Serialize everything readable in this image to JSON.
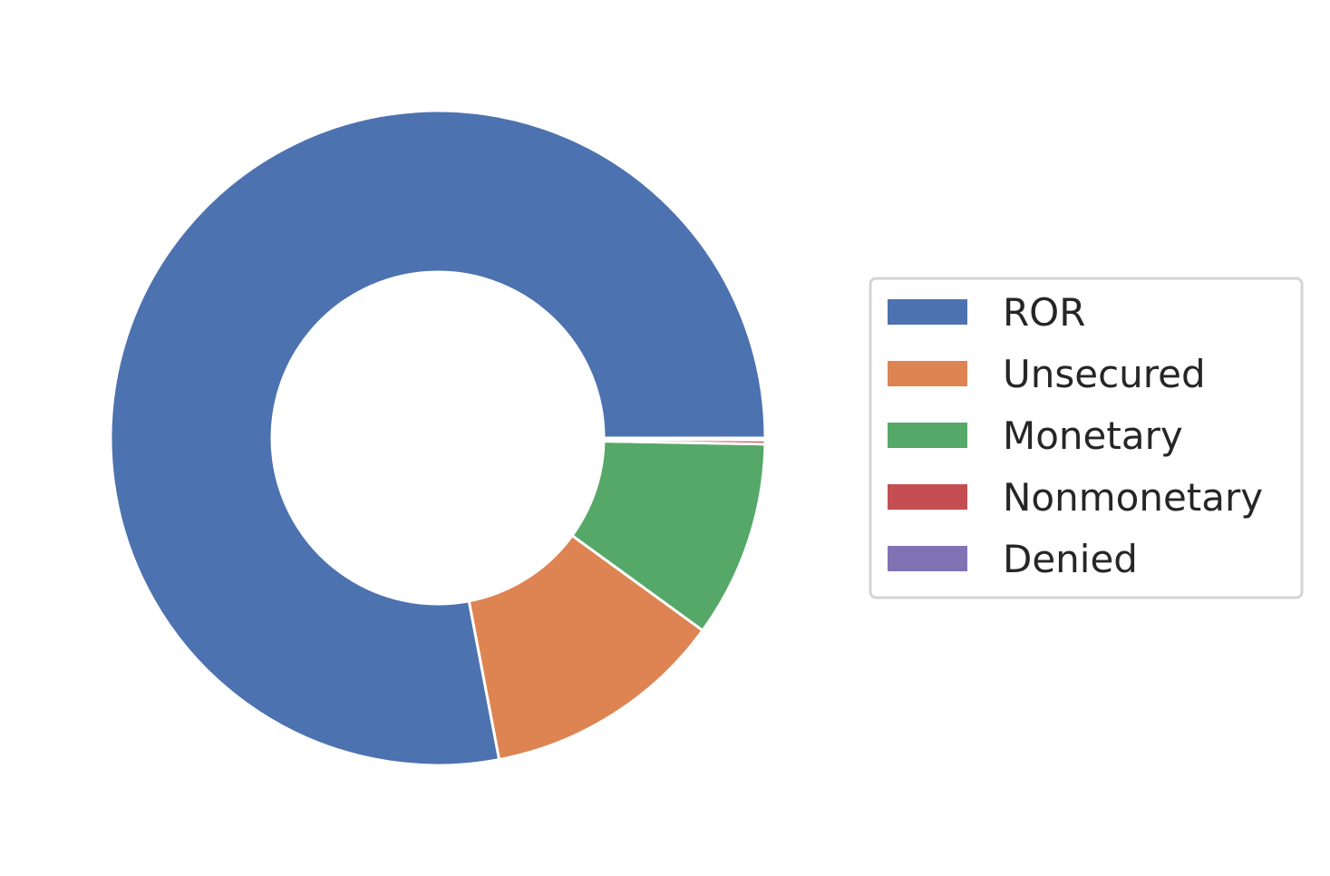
{
  "chart_data": {
    "type": "pie",
    "donut": true,
    "title": "",
    "categories": [
      "ROR",
      "Unsecured",
      "Monetary",
      "Nonmonetary",
      "Denied"
    ],
    "values": [
      78.0,
      12.0,
      9.7,
      0.2,
      0.1
    ],
    "unit": "percent",
    "colors": [
      "#4c72b0",
      "#dd8452",
      "#55a868",
      "#c44e52",
      "#8172b3"
    ],
    "start_angle_deg": 0,
    "direction": "counterclockwise",
    "legend": {
      "position": "right",
      "entries": [
        "ROR",
        "Unsecured",
        "Monetary",
        "Nonmonetary",
        "Denied"
      ]
    }
  }
}
